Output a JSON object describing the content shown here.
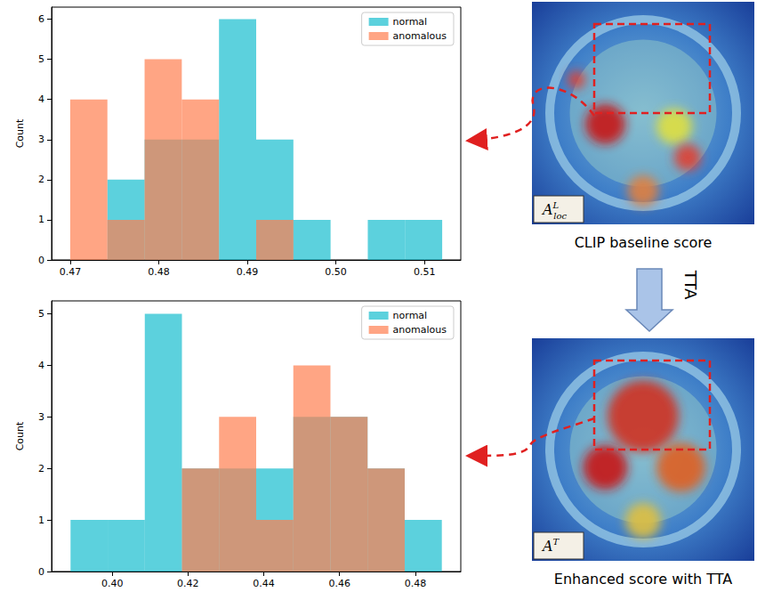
{
  "chart_data": [
    {
      "type": "histogram",
      "y_label": "Count",
      "bins": [
        0.47,
        0.4742,
        0.4784,
        0.4826,
        0.4868,
        0.491,
        0.4952,
        0.4994,
        0.5036,
        0.5078,
        0.512
      ],
      "series": [
        {
          "name": "normal",
          "color": "#17becf",
          "values": [
            0,
            2,
            3,
            3,
            6,
            3,
            1,
            0,
            1,
            1
          ]
        },
        {
          "name": "anomalous",
          "color": "#ff7f50",
          "values": [
            4,
            1,
            5,
            4,
            0,
            1,
            0,
            0,
            0,
            0
          ]
        }
      ],
      "xlim": [
        0.4679,
        0.5141
      ],
      "xticks": [
        0.47,
        0.48,
        0.49,
        {
          "value": 0.5,
          "label": "0.50"
        },
        0.51
      ],
      "ylim": [
        0,
        6.3
      ],
      "yticks": [
        0,
        1,
        2,
        3,
        4,
        5,
        6
      ],
      "legend": "upper right",
      "grid": false
    },
    {
      "type": "histogram",
      "y_label": "Count",
      "bins": [
        0.389,
        0.3988,
        0.4086,
        0.4184,
        0.4282,
        0.438,
        0.4478,
        0.4576,
        0.4674,
        0.4772,
        0.487
      ],
      "series": [
        {
          "name": "normal",
          "color": "#17becf",
          "values": [
            1,
            1,
            5,
            2,
            2,
            2,
            3,
            3,
            2,
            1
          ]
        },
        {
          "name": "anomalous",
          "color": "#ff7f50",
          "values": [
            0,
            0,
            0,
            2,
            3,
            1,
            4,
            3,
            2,
            0
          ]
        }
      ],
      "xlim": [
        0.384,
        0.492
      ],
      "xticks": [
        {
          "value": 0.4,
          "label": "0.40"
        },
        0.42,
        0.44,
        0.46,
        0.48
      ],
      "ylim": [
        0,
        5.25
      ],
      "yticks": [
        0,
        1,
        2,
        3,
        4,
        5
      ],
      "legend": "upper right",
      "grid": false
    }
  ],
  "figure": {
    "images": [
      {
        "label": {
          "base": "A",
          "sup": "L",
          "sub": "loc"
        },
        "caption": "CLIP baseline score"
      },
      {
        "label": {
          "base": "A",
          "sup": "T"
        },
        "caption": "Enhanced score with TTA"
      }
    ],
    "arrow_label": "TTA"
  }
}
